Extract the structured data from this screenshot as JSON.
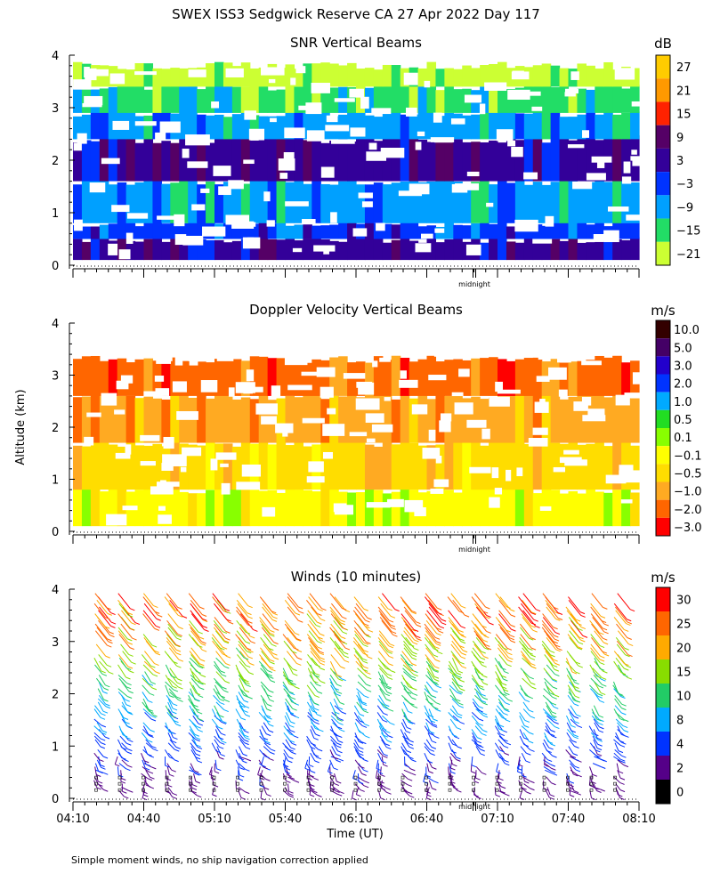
{
  "figure": {
    "title": "SWEX ISS3 Sedgwick Reserve CA  27 Apr 2022 Day 117",
    "ylabel": "Altitude (km)",
    "xlabel": "Time (UT)",
    "footnote": "Simple moment winds, no ship navigation correction applied",
    "midnight_label": "midnight"
  },
  "chart_data": [
    {
      "type": "heatmap",
      "title": "SNR Vertical Beams",
      "colorbar_unit": "dB",
      "colorbar_ticks": [
        "27",
        "21",
        "15",
        "9",
        "3",
        "−3",
        "−9",
        "−15",
        "−21"
      ],
      "colorbar_colors": [
        "#ffcc00",
        "#ff9900",
        "#ff2200",
        "#550066",
        "#330099",
        "#0033ff",
        "#00a0ff",
        "#22dd66",
        "#ccff33"
      ],
      "ylim": [
        0,
        4
      ],
      "yticks": [
        "0",
        "1",
        "2",
        "3",
        "4"
      ],
      "altitude_bands_km": [
        {
          "from": 0.1,
          "to": 0.5,
          "dB": 3
        },
        {
          "from": 0.5,
          "to": 0.8,
          "dB": -3
        },
        {
          "from": 0.8,
          "to": 1.6,
          "dB": -9
        },
        {
          "from": 1.6,
          "to": 2.4,
          "dB": 3
        },
        {
          "from": 2.4,
          "to": 2.9,
          "dB": -9
        },
        {
          "from": 2.9,
          "to": 3.4,
          "dB": -15
        },
        {
          "from": 3.4,
          "to": 3.8,
          "dB": -21
        }
      ]
    },
    {
      "type": "heatmap",
      "title": "Doppler Velocity Vertical Beams",
      "colorbar_unit": "m/s",
      "colorbar_ticks": [
        "10.0",
        "5.0",
        "3.0",
        "2.0",
        "1.0",
        "0.5",
        "0.1",
        "−0.1",
        "−0.5",
        "−1.0",
        "−2.0",
        "−3.0"
      ],
      "colorbar_colors": [
        "#330000",
        "#440066",
        "#2200cc",
        "#0033ff",
        "#00aaff",
        "#22dd22",
        "#88ff00",
        "#ffff00",
        "#ffdd00",
        "#ffaa22",
        "#ff6600",
        "#ff0000"
      ],
      "ylim": [
        0,
        4
      ],
      "yticks": [
        "0",
        "1",
        "2",
        "3",
        "4"
      ],
      "altitude_bands_km": [
        {
          "from": 0.1,
          "to": 0.8,
          "ms": -0.1
        },
        {
          "from": 0.8,
          "to": 1.7,
          "ms": -0.5
        },
        {
          "from": 1.7,
          "to": 2.6,
          "ms": -1.0
        },
        {
          "from": 2.6,
          "to": 3.3,
          "ms": -2.0
        }
      ]
    },
    {
      "type": "scatter",
      "title": "Winds (10 minutes)",
      "colorbar_unit": "m/s",
      "colorbar_ticks": [
        "30",
        "25",
        "20",
        "15",
        "10",
        "8",
        "4",
        "2",
        "0"
      ],
      "colorbar_colors": [
        "#ff0000",
        "#ff6600",
        "#ffaa00",
        "#88dd00",
        "#22cc66",
        "#00aaff",
        "#0033ff",
        "#550088",
        "#000000"
      ],
      "ylim": [
        0,
        4
      ],
      "yticks": [
        "0",
        "1",
        "2",
        "3",
        "4"
      ],
      "xlim": [
        "04:10",
        "08:10"
      ],
      "xticks": [
        "04:10",
        "04:40",
        "05:10",
        "05:40",
        "06:10",
        "06:40",
        "07:10",
        "07:40",
        "08:10"
      ],
      "midnight_time": "07:00",
      "profile_times": [
        "04:20",
        "04:30",
        "04:40",
        "04:50",
        "05:00",
        "05:10",
        "05:20",
        "05:30",
        "05:40",
        "05:50",
        "06:00",
        "06:10",
        "06:20",
        "06:30",
        "06:40",
        "06:50",
        "07:00",
        "07:10",
        "07:20",
        "07:30",
        "07:40",
        "07:50",
        "08:00"
      ],
      "speed_profile_ms": [
        {
          "alt_km": 0.3,
          "speed": 2
        },
        {
          "alt_km": 1.0,
          "speed": 4
        },
        {
          "alt_km": 1.8,
          "speed": 8
        },
        {
          "alt_km": 2.4,
          "speed": 12
        },
        {
          "alt_km": 3.0,
          "speed": 18
        },
        {
          "alt_km": 3.6,
          "speed": 24
        }
      ]
    }
  ]
}
